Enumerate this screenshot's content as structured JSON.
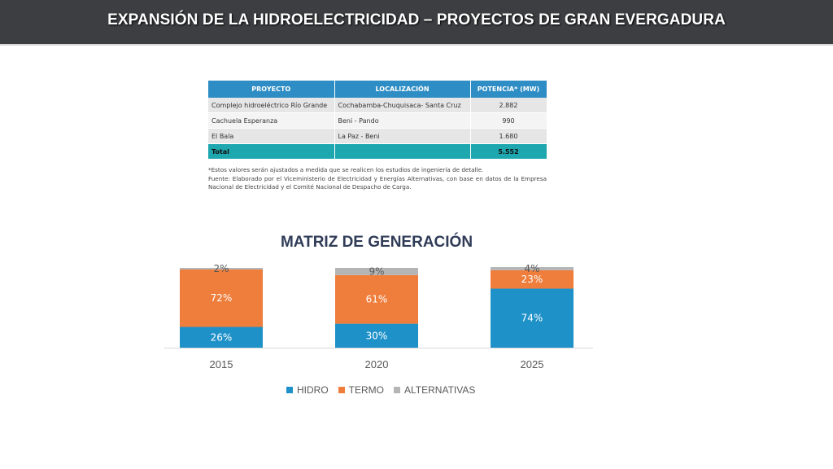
{
  "header": {
    "title": "EXPANSIÓN DE LA HIDROELECTRICIDAD – PROYECTOS DE GRAN EVERGADURA"
  },
  "table": {
    "headers": [
      "PROYECTO",
      "LOCALIZACIÓN",
      "POTENCIA* (MW)"
    ],
    "rows": [
      [
        "Complejo hidroeléctrico Río Grande",
        "Cochabamba-Chuquisaca- Santa Cruz",
        "2.882"
      ],
      [
        "Cachuela Esperanza",
        "Beni - Pando",
        "990"
      ],
      [
        "El Bala",
        "La Paz - Beni",
        "1.680"
      ]
    ],
    "total": [
      "Total",
      "",
      "5.552"
    ],
    "note": "*Estos valores serán ajustados a medida que se realicen los estudios de ingeniería de detalle.",
    "source": "Fuente: Elaborado por el Viceministerio de Electricidad y Energías Alternativas, con base en datos de la Empresa Nacional de Electricidad y el Comité Nacional de Despacho de Carga."
  },
  "chart_data": {
    "type": "bar",
    "stacked": true,
    "title": "MATRIZ DE GENERACIÓN",
    "categories": [
      "2015",
      "2020",
      "2025"
    ],
    "series": [
      {
        "name": "HIDRO",
        "values": [
          26,
          30,
          74
        ],
        "labels": [
          "26%",
          "30%",
          "74%"
        ],
        "color": "#1f91c9"
      },
      {
        "name": "TERMO",
        "values": [
          72,
          61,
          23
        ],
        "labels": [
          "72%",
          "61%",
          "23%"
        ],
        "color": "#ef7d3c"
      },
      {
        "name": "ALTERNATIVAS",
        "values": [
          2,
          9,
          4
        ],
        "labels": [
          "2%",
          "9%",
          "4%"
        ],
        "color": "#b5b5b5"
      }
    ],
    "ylim": [
      0,
      100
    ],
    "legend_position": "bottom"
  }
}
